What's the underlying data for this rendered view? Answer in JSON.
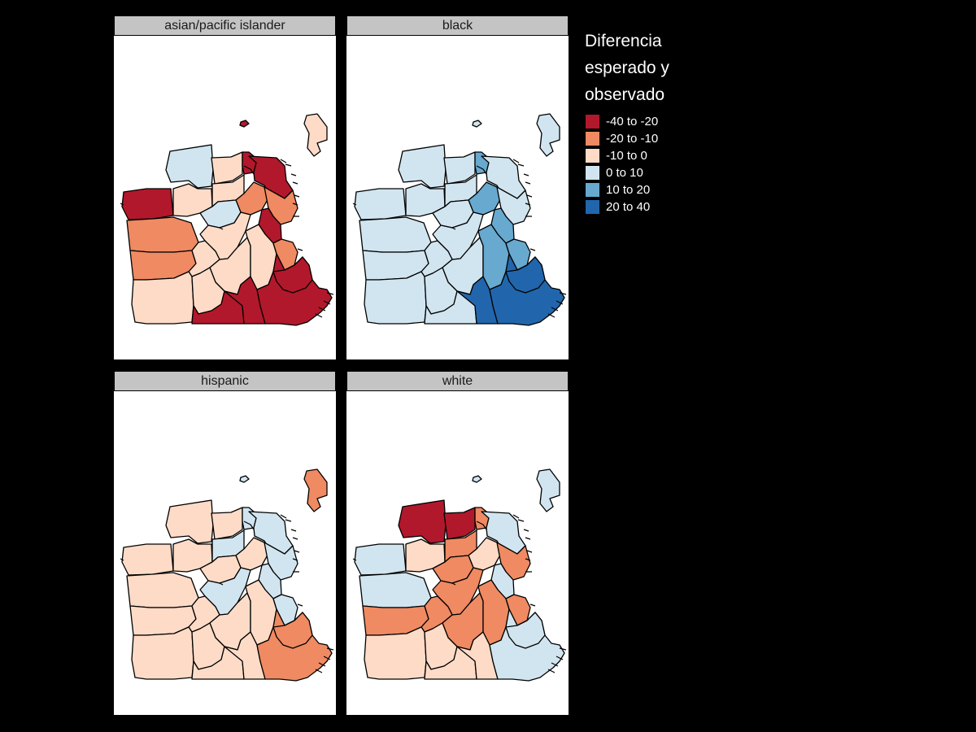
{
  "figure": {
    "type": "faceted choropleth map",
    "region": "San Francisco"
  },
  "legend": {
    "title": "Diferencia esperado y observado",
    "items": [
      {
        "label": "-40 to -20",
        "color": "#b2182b"
      },
      {
        "label": "-20 to -10",
        "color": "#ef8a62"
      },
      {
        "label": "-10 to 0",
        "color": "#fddbc7"
      },
      {
        "label": "0 to 10",
        "color": "#d1e5f0"
      },
      {
        "label": "10 to 20",
        "color": "#67a9cf"
      },
      {
        "label": "20 to 40",
        "color": "#2166ac"
      }
    ]
  },
  "panels": [
    {
      "title": "asian/pacific islander",
      "regions": {
        "island": "-10 to 0",
        "alcatraz": "-40 to -20",
        "presidio": "0 to 10",
        "marina": "-10 to 0",
        "north_beach": "-40 to -20",
        "chinatown": "-40 to -20",
        "richmond": "-40 to -20",
        "inner_richmond": "-10 to 0",
        "pacific_heights": "-10 to 0",
        "western_addition": "-20 to -10",
        "downtown": "-20 to -10",
        "soma": "-40 to -20",
        "outer_sunset": "-20 to -10",
        "haight": "0 to 10",
        "castro": "-10 to 0",
        "inner_sunset": "-20 to -10",
        "twin_peaks": "-10 to 0",
        "noe_valley": "-10 to 0",
        "mission": "-10 to 0",
        "potrero": "-20 to -10",
        "lakeshore": "-10 to 0",
        "ocean_view": "-10 to 0",
        "excelsior": "-40 to -20",
        "portola": "-40 to -20",
        "bayview": "-40 to -20",
        "visitacion": "-40 to -20"
      }
    },
    {
      "title": "black",
      "regions": {
        "island": "0 to 10",
        "alcatraz": "0 to 10",
        "presidio": "0 to 10",
        "marina": "0 to 10",
        "north_beach": "10 to 20",
        "chinatown": "0 to 10",
        "richmond": "0 to 10",
        "inner_richmond": "0 to 10",
        "pacific_heights": "0 to 10",
        "western_addition": "10 to 20",
        "downtown": "0 to 10",
        "soma": "10 to 20",
        "outer_sunset": "0 to 10",
        "haight": "0 to 10",
        "castro": "0 to 10",
        "inner_sunset": "0 to 10",
        "twin_peaks": "0 to 10",
        "noe_valley": "0 to 10",
        "mission": "10 to 20",
        "potrero": "10 to 20",
        "lakeshore": "0 to 10",
        "ocean_view": "0 to 10",
        "excelsior": "0 to 10",
        "portola": "20 to 40",
        "bayview": "20 to 40",
        "visitacion": "20 to 40"
      }
    },
    {
      "title": "hispanic",
      "regions": {
        "island": "-20 to -10",
        "alcatraz": "0 to 10",
        "presidio": "-10 to 0",
        "marina": "-10 to 0",
        "north_beach": "0 to 10",
        "chinatown": "0 to 10",
        "richmond": "-10 to 0",
        "inner_richmond": "-10 to 0",
        "pacific_heights": "0 to 10",
        "western_addition": "-10 to 0",
        "downtown": "0 to 10",
        "soma": "0 to 10",
        "outer_sunset": "-10 to 0",
        "haight": "-10 to 0",
        "castro": "0 to 10",
        "inner_sunset": "-10 to 0",
        "twin_peaks": "-10 to 0",
        "noe_valley": "-10 to 0",
        "mission": "-10 to 0",
        "potrero": "0 to 10",
        "lakeshore": "-10 to 0",
        "ocean_view": "-10 to 0",
        "excelsior": "-10 to 0",
        "portola": "-10 to 0",
        "bayview": "-20 to -10",
        "visitacion": "-20 to -10"
      }
    },
    {
      "title": "white",
      "regions": {
        "island": "0 to 10",
        "alcatraz": "0 to 10",
        "presidio": "-40 to -20",
        "marina": "-40 to -20",
        "north_beach": "-20 to -10",
        "chinatown": "0 to 10",
        "richmond": "0 to 10",
        "inner_richmond": "-10 to 0",
        "pacific_heights": "-20 to -10",
        "western_addition": "-10 to 0",
        "downtown": "-20 to -10",
        "soma": "0 to 10",
        "outer_sunset": "0 to 10",
        "haight": "-20 to -10",
        "castro": "-20 to -10",
        "inner_sunset": "-20 to -10",
        "twin_peaks": "-20 to -10",
        "noe_valley": "-20 to -10",
        "mission": "-20 to -10",
        "potrero": "-20 to -10",
        "lakeshore": "-10 to 0",
        "ocean_view": "-10 to 0",
        "excelsior": "-10 to 0",
        "portola": "-10 to 0",
        "bayview": "0 to 10",
        "visitacion": "0 to 10"
      }
    }
  ]
}
